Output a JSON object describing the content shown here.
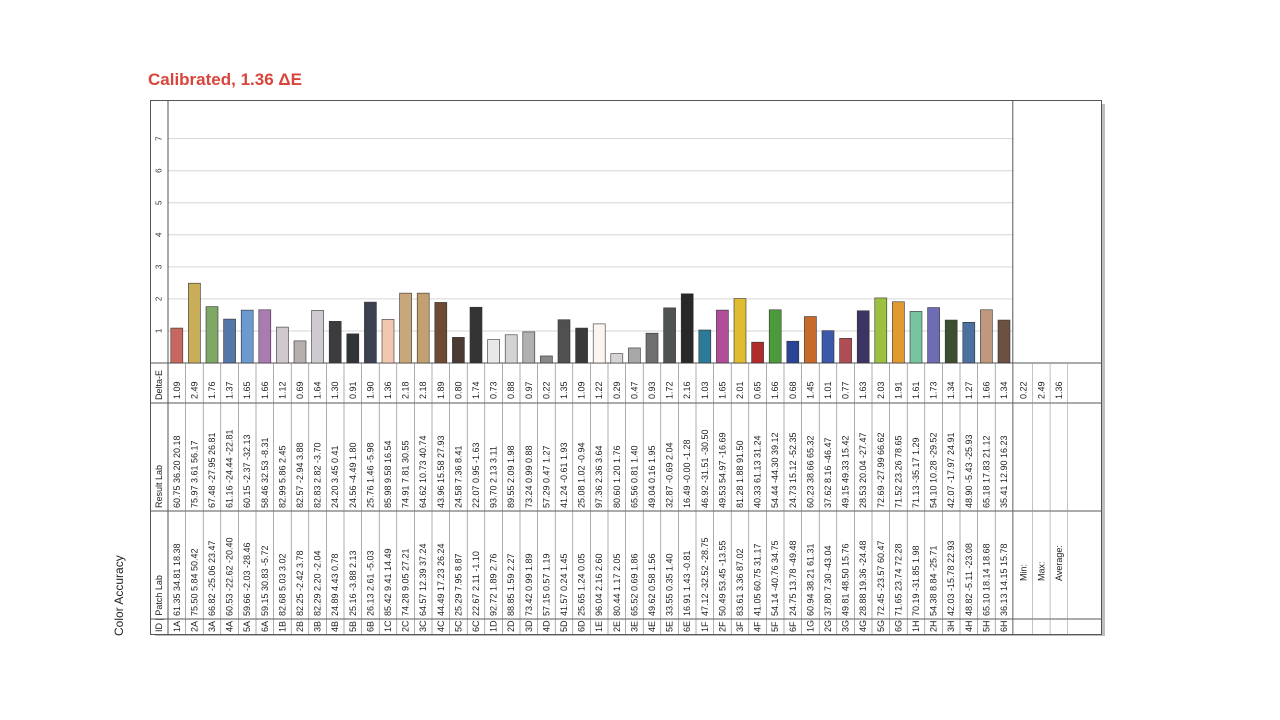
{
  "title": "Calibrated, 1.36 ΔE",
  "side_label": "Color Accuracy",
  "headers": {
    "id": "ID",
    "patch": "Patch Lab",
    "result": "Result Lab",
    "delta": "Delta-E"
  },
  "summary": {
    "labels": [
      "Min:",
      "Max:",
      "Average:"
    ],
    "values": [
      "0.22",
      "2.49",
      "1.36"
    ]
  },
  "chart_data": {
    "type": "bar",
    "ylim": [
      0,
      7.8
    ],
    "yticks": [
      "1",
      "2",
      "3",
      "4",
      "5",
      "6",
      "7"
    ],
    "grid": true,
    "categories": [
      "1A",
      "2A",
      "3A",
      "4A",
      "5A",
      "6A",
      "1B",
      "2B",
      "3B",
      "4B",
      "5B",
      "6B",
      "1C",
      "2C",
      "3C",
      "4C",
      "5C",
      "6C",
      "1D",
      "2D",
      "3D",
      "4D",
      "5D",
      "6D",
      "1E",
      "2E",
      "3E",
      "4E",
      "5E",
      "6E",
      "1F",
      "2F",
      "3F",
      "4F",
      "5F",
      "6F",
      "1G",
      "2G",
      "3G",
      "4G",
      "5G",
      "6G",
      "1H",
      "2H",
      "3H",
      "4H",
      "5H",
      "6H"
    ],
    "values": [
      1.09,
      2.49,
      1.76,
      1.37,
      1.65,
      1.66,
      1.12,
      0.69,
      1.64,
      1.3,
      0.91,
      1.9,
      1.36,
      2.18,
      2.18,
      1.89,
      0.8,
      1.74,
      0.73,
      0.88,
      0.97,
      0.22,
      1.35,
      1.09,
      1.22,
      0.29,
      0.47,
      0.93,
      1.72,
      2.16,
      1.03,
      1.65,
      2.01,
      0.65,
      1.66,
      0.68,
      1.45,
      1.01,
      0.77,
      1.63,
      2.03,
      1.91,
      1.61,
      1.73,
      1.34,
      1.27,
      1.66,
      1.34
    ],
    "value_labels": [
      "1.09",
      "2.49",
      "1.76",
      "1.37",
      "1.65",
      "1.66",
      "1.12",
      "0.69",
      "1.64",
      "1.30",
      "0.91",
      "1.90",
      "1.36",
      "2.18",
      "2.18",
      "1.89",
      "0.80",
      "1.74",
      "0.73",
      "0.88",
      "0.97",
      "0.22",
      "1.35",
      "1.09",
      "1.22",
      "0.29",
      "0.47",
      "0.93",
      "1.72",
      "2.16",
      "1.03",
      "1.65",
      "2.01",
      "0.65",
      "1.66",
      "0.68",
      "1.45",
      "1.01",
      "0.77",
      "1.63",
      "2.03",
      "1.91",
      "1.61",
      "1.73",
      "1.34",
      "1.27",
      "1.66",
      "1.34"
    ],
    "colors": [
      "#c8675f",
      "#c9ad58",
      "#7fa866",
      "#5477a8",
      "#6a9ad0",
      "#a97bb0",
      "#d0c8cc",
      "#b5b0ae",
      "#cfcad2",
      "#3c3c3e",
      "#303434",
      "#3c4150",
      "#f0c8b0",
      "#c8a878",
      "#c4a070",
      "#6e4a32",
      "#4a3a34",
      "#343434",
      "#e8e8e8",
      "#d4d4d4",
      "#b0b0b0",
      "#888888",
      "#505050",
      "#3a3a3a",
      "#fcf4f0",
      "#d8d4d4",
      "#a8a8a8",
      "#707070",
      "#505450",
      "#282828",
      "#2a7a98",
      "#b04c98",
      "#e0bc30",
      "#b02c2c",
      "#4c9a3c",
      "#2c4498",
      "#c86a2c",
      "#3c58a8",
      "#b04c54",
      "#3c3464",
      "#9cc040",
      "#e09a30",
      "#78c4a0",
      "#6e6cb4",
      "#3c5030",
      "#4c70a0",
      "#c09880",
      "#6c5040"
    ],
    "patch_lab": [
      "61.35 34.81 18.38",
      "75.50 5.84 50.42",
      "66.82 -25.06 23.47",
      "60.53 -22.62 -20.40",
      "59.66 -2.03 -28.46",
      "59.15 30.83 -5.72",
      "82.68 5.03 3.02",
      "82.25 -2.42 3.78",
      "82.29 2.20 -2.04",
      "24.89 4.43 0.78",
      "25.16 -3.88 2.13",
      "26.13 2.61 -5.03",
      "85.42 9.41 14.49",
      "74.28 9.05 27.21",
      "64.57 12.39 37.24",
      "44.49 17.23 26.24",
      "25.29 7.95 8.87",
      "22.67 2.11 -1.10",
      "92.72 1.89 2.76",
      "88.85 1.59 2.27",
      "73.42 0.99 1.89",
      "57.15 0.57 1.19",
      "41.57 0.24 1.45",
      "25.65 1.24 0.05",
      "96.04 2.16 2.60",
      "80.44 1.17 2.05",
      "65.52 0.69 1.86",
      "49.62 0.58 1.56",
      "33.55 0.35 1.40",
      "16.91 1.43 -0.81",
      "47.12 -32.52 -28.75",
      "50.49 53.45 -13.55",
      "83.61 3.36 87.02",
      "41.05 60.75 31.17",
      "54.14 -40.76 34.75",
      "24.75 13.78 -49.48",
      "60.94 38.21 61.31",
      "37.80 7.30 -43.04",
      "49.81 48.50 15.76",
      "28.88 19.36 -24.48",
      "72.45 -23.57 60.47",
      "71.65 23.74 72.28",
      "70.19 -31.85 1.98",
      "54.38 8.84 -25.71",
      "42.03 -15.78 22.93",
      "48.82 -5.11 -23.08",
      "65.10 18.14 18.68",
      "36.13 14.15 15.78"
    ],
    "result_lab": [
      "60.75 36.20 20.18",
      "75.97 3.61 56.17",
      "67.48 -27.95 26.81",
      "61.16 -24.44 -22.81",
      "60.15 -2.37 -32.13",
      "58.46 32.53 -8.31",
      "82.99 5.86 2.45",
      "82.57 -2.94 3.88",
      "82.83 2.82 -3.70",
      "24.20 3.45 0.41",
      "24.56 -4.49 1.80",
      "25.76 1.46 -5.98",
      "85.98 9.58 16.54",
      "74.91 7.81 30.55",
      "64.62 10.73 40.74",
      "43.96 15.58 27.93",
      "24.58 7.36 8.41",
      "22.07 0.95 -1.63",
      "93.70 2.13 3.11",
      "89.55 2.09 1.98",
      "73.24 0.99 0.88",
      "57.29 0.47 1.27",
      "41.24 -0.61 1.93",
      "25.08 1.02 -0.94",
      "97.36 2.36 3.64",
      "80.60 1.20 1.76",
      "65.56 0.81 1.40",
      "49.04 0.16 1.95",
      "32.87 -0.69 2.04",
      "16.49 -0.00 -1.28",
      "46.92 -31.51 -30.50",
      "49.53 54.97 -16.69",
      "81.28 1.88 91.50",
      "40.33 61.13 31.24",
      "54.44 -44.30 39.12",
      "24.73 15.12 -52.35",
      "60.23 38.66 65.32",
      "37.62 8.16 -46.47",
      "49.15 49.33 15.42",
      "28.53 20.04 -27.47",
      "72.69 -27.99 66.62",
      "71.52 23.26 78.65",
      "71.13 -35.17 1.29",
      "54.10 10.28 -29.52",
      "42.07 -17.97 24.91",
      "48.90 -5.43 -25.93",
      "65.18 17.83 21.12",
      "35.41 12.90 16.23"
    ]
  }
}
